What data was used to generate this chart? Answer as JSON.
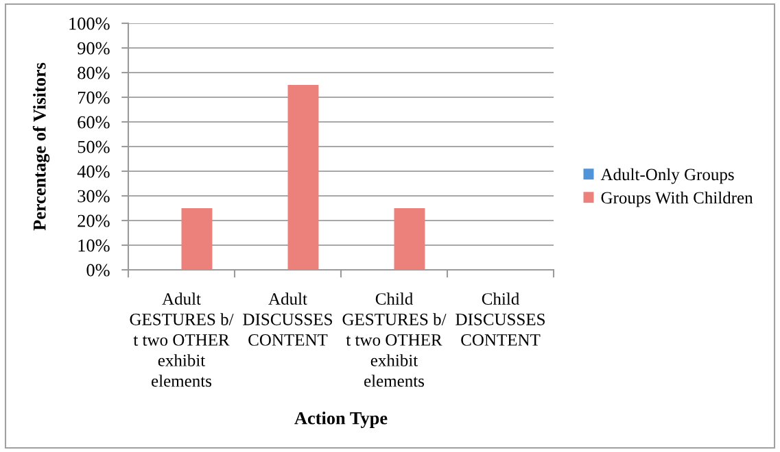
{
  "chart_data": {
    "type": "bar",
    "xlabel": "Action Type",
    "ylabel": "Percentage of Visitors",
    "categories": [
      "Adult\nGESTURES b/\nt two OTHER\nexhibit\nelements",
      "Adult\nDISCUSSES\nCONTENT",
      "Child\nGESTURES b/\nt two OTHER\nexhibit\nelements",
      "Child\nDISCUSSES\nCONTENT"
    ],
    "series": [
      {
        "name": "Adult-Only Groups",
        "color": "#4f94d9",
        "values": [
          0,
          0,
          0,
          0
        ]
      },
      {
        "name": "Groups With Children",
        "color": "#ec807a",
        "values": [
          25,
          75,
          25,
          0
        ]
      }
    ],
    "ylim": [
      0,
      100
    ],
    "yticks": [
      {
        "value": 0,
        "label": "0%"
      },
      {
        "value": 10,
        "label": "10%"
      },
      {
        "value": 20,
        "label": "20%"
      },
      {
        "value": 30,
        "label": "30%"
      },
      {
        "value": 40,
        "label": "40%"
      },
      {
        "value": 50,
        "label": "50%"
      },
      {
        "value": 60,
        "label": "60%"
      },
      {
        "value": 70,
        "label": "70%"
      },
      {
        "value": 80,
        "label": "80%"
      },
      {
        "value": 90,
        "label": "90%"
      },
      {
        "value": 100,
        "label": "100%"
      }
    ],
    "grid": "y",
    "legend": "right"
  }
}
